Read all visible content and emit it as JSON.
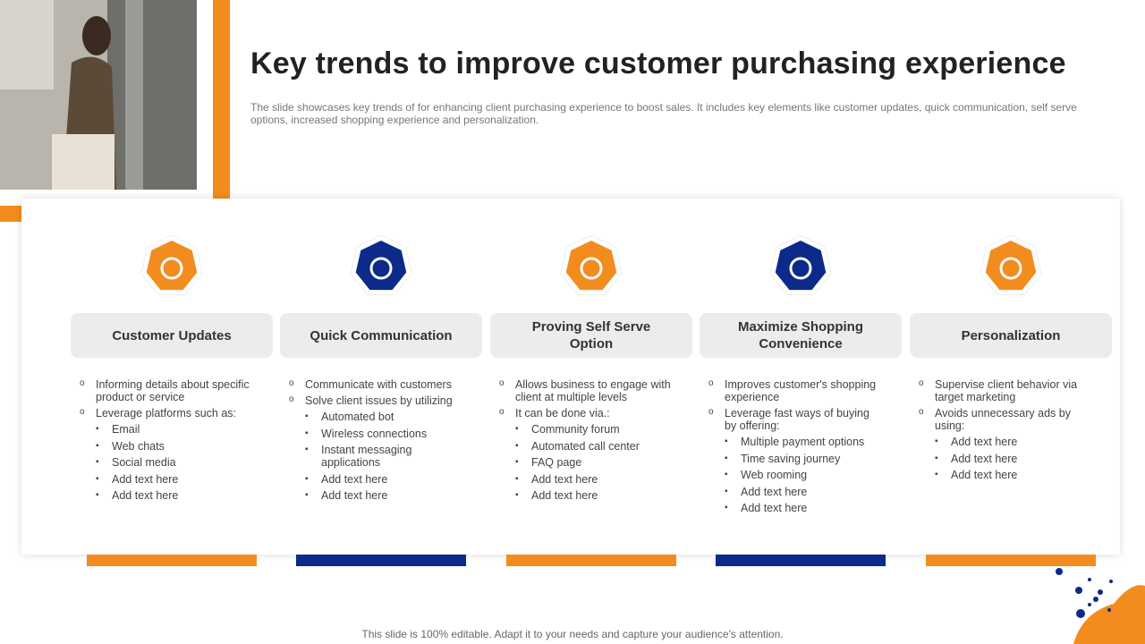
{
  "header": {
    "title": "Key trends to improve customer purchasing experience",
    "subtitle": "The slide showcases key trends of for enhancing client purchasing experience to boost sales. It includes key elements like customer updates, quick communication, self serve options, increased shopping experience and personalization."
  },
  "columns": [
    {
      "heading": "Customer Updates",
      "items": [
        {
          "text": "Informing details about specific product or service",
          "sub": []
        },
        {
          "text": "Leverage platforms such as:",
          "sub": [
            "Email",
            "Web chats",
            "Social media",
            "Add text here",
            "Add text here"
          ]
        }
      ]
    },
    {
      "heading": "Quick Communication",
      "items": [
        {
          "text": "Communicate with customers",
          "sub": []
        },
        {
          "text": "Solve client issues by utilizing",
          "sub": [
            "Automated bot",
            "Wireless connections",
            "Instant messaging applications",
            "Add text here",
            "Add text here"
          ]
        }
      ]
    },
    {
      "heading": "Proving Self Serve Option",
      "items": [
        {
          "text": "Allows business to engage with client at multiple levels",
          "sub": []
        },
        {
          "text": "It can be done via.:",
          "sub": [
            "Community forum",
            "Automated call center",
            "FAQ page",
            "Add text here",
            "Add text here"
          ]
        }
      ]
    },
    {
      "heading": "Maximize Shopping Convenience",
      "items": [
        {
          "text": "Improves customer's shopping experience",
          "sub": []
        },
        {
          "text": "Leverage fast ways of buying by offering:",
          "sub": [
            "Multiple payment options",
            "Time saving journey",
            "Web rooming",
            "Add text here",
            "Add text here"
          ]
        }
      ]
    },
    {
      "heading": "Personalization",
      "items": [
        {
          "text": "Supervise client behavior via target marketing",
          "sub": []
        },
        {
          "text": "Avoids unnecessary ads by using:",
          "sub": [
            "Add text here",
            "Add text here",
            "Add text here"
          ]
        }
      ]
    }
  ],
  "footer": "This slide is 100% editable. Adapt it to your needs and capture your audience's attention."
}
